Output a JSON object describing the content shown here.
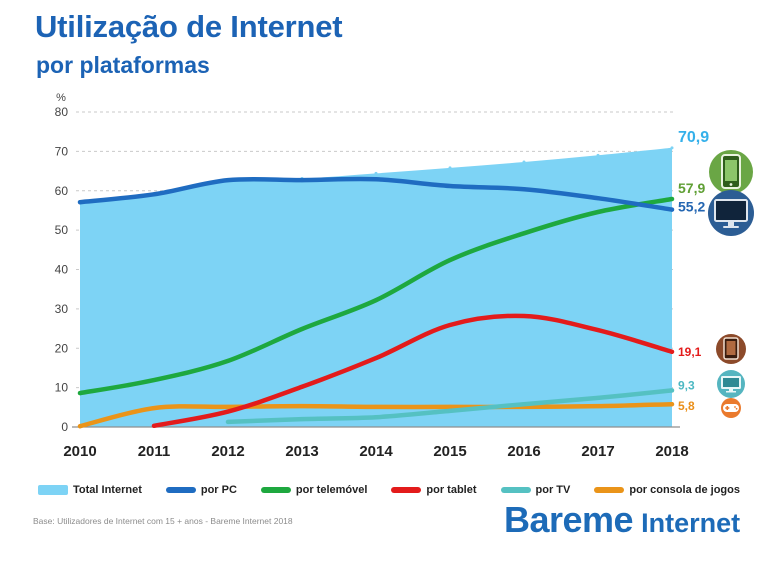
{
  "theme": {
    "title_color": "#1c63b5"
  },
  "chart_data": {
    "type": "line",
    "title": "Utilização de Internet",
    "subtitle": "por plataformas",
    "ylabel": "%",
    "ylim": [
      0,
      80
    ],
    "yticks": [
      0,
      10,
      20,
      30,
      40,
      50,
      60,
      70,
      80
    ],
    "categories": [
      "2010",
      "2011",
      "2012",
      "2013",
      "2014",
      "2015",
      "2016",
      "2017",
      "2018"
    ],
    "grid": true,
    "legend": "bottom",
    "series": [
      {
        "name": "Total Internet",
        "type": "area",
        "color": "#7dd3f5",
        "label_color": "#34b0ea",
        "end_label": "70,9",
        "values": [
          57.1,
          59.1,
          62.7,
          63.1,
          64.4,
          65.8,
          67.3,
          69.0,
          70.9
        ]
      },
      {
        "name": "por PC",
        "type": "line",
        "color": "#1f6cc1",
        "label_color": "#2466b2",
        "end_label": "55,2",
        "values": [
          57.1,
          59.1,
          62.7,
          62.7,
          62.9,
          61.2,
          60.4,
          58.1,
          55.2
        ]
      },
      {
        "name": "por telemóvel",
        "type": "line",
        "color": "#1ea83f",
        "label_color": "#5f9f34",
        "end_label": "57,9",
        "values": [
          8.6,
          11.9,
          16.8,
          24.9,
          32.2,
          42.4,
          49.2,
          54.6,
          57.9
        ]
      },
      {
        "name": "por tablet",
        "type": "line",
        "color": "#e31b1b",
        "label_color": "#e31b1b",
        "end_label": "19,1",
        "values": [
          null,
          0.3,
          3.9,
          10.2,
          17.5,
          25.9,
          28.2,
          24.6,
          19.1
        ]
      },
      {
        "name": "por TV",
        "type": "line",
        "color": "#55c1c2",
        "label_color": "#4db8c3",
        "end_label": "9,3",
        "values": [
          null,
          null,
          1.3,
          2.0,
          2.5,
          4.1,
          5.8,
          7.4,
          9.3
        ]
      },
      {
        "name": "por consola de jogos",
        "type": "line",
        "color": "#ea9419",
        "label_color": "#ea8f19",
        "end_label": "5,8",
        "values": [
          0.2,
          4.8,
          5.1,
          5.3,
          5.1,
          5.1,
          5.1,
          5.3,
          5.8
        ]
      }
    ]
  },
  "platform_icons": [
    {
      "icon": "phone-icon",
      "color": "#6aa645"
    },
    {
      "icon": "monitor-icon",
      "color": "#2c5d94"
    },
    {
      "icon": "tablet-icon",
      "color": "#8c4a2a"
    },
    {
      "icon": "tv-icon",
      "color": "#55b5c0"
    },
    {
      "icon": "gamepad-icon",
      "color": "#ea7a2d"
    }
  ],
  "footer": {
    "source": "Base: Utilizadores de Internet com 15 + anos - Bareme Internet 2018",
    "logo": {
      "word1": "Bareme",
      "word2": "Internet",
      "color": "#1d6bb8"
    }
  }
}
